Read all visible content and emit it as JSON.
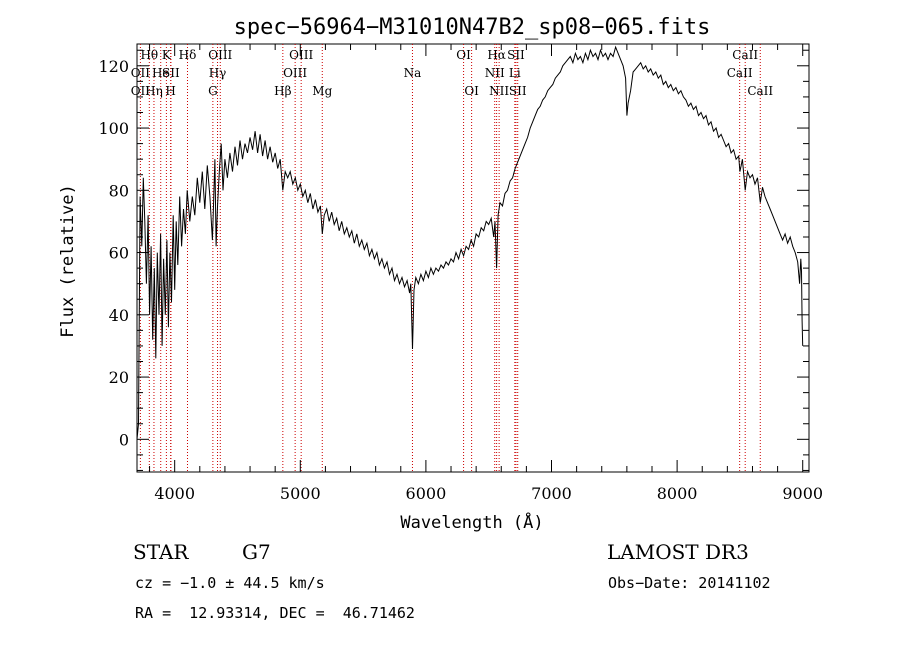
{
  "chart_data": {
    "type": "line",
    "title": "spec−56964−M31010N47B2_sp08−065.fits",
    "xlabel": "Wavelength (Å)",
    "ylabel": "Flux (relative)",
    "xlim": [
      3700,
      9050
    ],
    "ylim": [
      -10.5,
      127
    ],
    "xticks": [
      4000,
      5000,
      6000,
      7000,
      8000,
      9000
    ],
    "yticks": [
      0,
      20,
      40,
      60,
      80,
      100,
      120
    ],
    "grid": false,
    "line_color": "#000000",
    "marker_color": "#cc0000",
    "spectrum": [
      [
        3700,
        0
      ],
      [
        3712,
        5
      ],
      [
        3725,
        78
      ],
      [
        3738,
        62
      ],
      [
        3750,
        84
      ],
      [
        3762,
        70
      ],
      [
        3775,
        50
      ],
      [
        3788,
        72
      ],
      [
        3800,
        40
      ],
      [
        3812,
        62
      ],
      [
        3825,
        32
      ],
      [
        3838,
        55
      ],
      [
        3850,
        26
      ],
      [
        3862,
        60
      ],
      [
        3875,
        40
      ],
      [
        3888,
        66
      ],
      [
        3900,
        30
      ],
      [
        3912,
        58
      ],
      [
        3925,
        40
      ],
      [
        3938,
        64
      ],
      [
        3950,
        36
      ],
      [
        3962,
        60
      ],
      [
        3975,
        44
      ],
      [
        3988,
        72
      ],
      [
        4000,
        48
      ],
      [
        4012,
        70
      ],
      [
        4025,
        56
      ],
      [
        4040,
        78
      ],
      [
        4055,
        62
      ],
      [
        4070,
        74
      ],
      [
        4085,
        66
      ],
      [
        4100,
        80
      ],
      [
        4120,
        70
      ],
      [
        4140,
        78
      ],
      [
        4160,
        72
      ],
      [
        4180,
        84
      ],
      [
        4200,
        76
      ],
      [
        4220,
        86
      ],
      [
        4240,
        74
      ],
      [
        4260,
        88
      ],
      [
        4280,
        78
      ],
      [
        4300,
        64
      ],
      [
        4310,
        76
      ],
      [
        4320,
        90
      ],
      [
        4330,
        62
      ],
      [
        4340,
        74
      ],
      [
        4355,
        86
      ],
      [
        4370,
        95
      ],
      [
        4385,
        80
      ],
      [
        4400,
        90
      ],
      [
        4420,
        84
      ],
      [
        4440,
        92
      ],
      [
        4460,
        86
      ],
      [
        4480,
        94
      ],
      [
        4500,
        88
      ],
      [
        4520,
        96
      ],
      [
        4540,
        90
      ],
      [
        4560,
        95
      ],
      [
        4580,
        92
      ],
      [
        4600,
        97
      ],
      [
        4620,
        93
      ],
      [
        4640,
        99
      ],
      [
        4660,
        92
      ],
      [
        4680,
        98
      ],
      [
        4700,
        91
      ],
      [
        4720,
        96
      ],
      [
        4740,
        90
      ],
      [
        4760,
        94
      ],
      [
        4780,
        89
      ],
      [
        4800,
        92
      ],
      [
        4820,
        87
      ],
      [
        4840,
        90
      ],
      [
        4861,
        80
      ],
      [
        4880,
        86
      ],
      [
        4900,
        84
      ],
      [
        4920,
        86
      ],
      [
        4940,
        82
      ],
      [
        4960,
        84
      ],
      [
        4980,
        80
      ],
      [
        5000,
        82
      ],
      [
        5020,
        78
      ],
      [
        5040,
        80
      ],
      [
        5060,
        76
      ],
      [
        5080,
        79
      ],
      [
        5100,
        74
      ],
      [
        5120,
        77
      ],
      [
        5140,
        73
      ],
      [
        5160,
        75
      ],
      [
        5175,
        66
      ],
      [
        5190,
        72
      ],
      [
        5210,
        74
      ],
      [
        5230,
        70
      ],
      [
        5250,
        73
      ],
      [
        5270,
        69
      ],
      [
        5290,
        71
      ],
      [
        5310,
        67
      ],
      [
        5330,
        70
      ],
      [
        5350,
        66
      ],
      [
        5370,
        68
      ],
      [
        5390,
        65
      ],
      [
        5410,
        67
      ],
      [
        5430,
        63
      ],
      [
        5450,
        66
      ],
      [
        5470,
        62
      ],
      [
        5490,
        64
      ],
      [
        5510,
        61
      ],
      [
        5530,
        63
      ],
      [
        5550,
        59
      ],
      [
        5570,
        61
      ],
      [
        5590,
        58
      ],
      [
        5610,
        60
      ],
      [
        5630,
        56
      ],
      [
        5650,
        58
      ],
      [
        5670,
        55
      ],
      [
        5690,
        57
      ],
      [
        5710,
        53
      ],
      [
        5730,
        55
      ],
      [
        5750,
        51
      ],
      [
        5770,
        53
      ],
      [
        5790,
        50
      ],
      [
        5810,
        52
      ],
      [
        5830,
        49
      ],
      [
        5850,
        51
      ],
      [
        5870,
        47
      ],
      [
        5880,
        50
      ],
      [
        5893,
        29
      ],
      [
        5905,
        48
      ],
      [
        5920,
        52
      ],
      [
        5940,
        50
      ],
      [
        5960,
        53
      ],
      [
        5980,
        51
      ],
      [
        6000,
        54
      ],
      [
        6020,
        52
      ],
      [
        6040,
        55
      ],
      [
        6060,
        53
      ],
      [
        6080,
        55
      ],
      [
        6100,
        54
      ],
      [
        6120,
        56
      ],
      [
        6140,
        55
      ],
      [
        6160,
        57
      ],
      [
        6180,
        56
      ],
      [
        6200,
        58
      ],
      [
        6220,
        57
      ],
      [
        6240,
        60
      ],
      [
        6260,
        58
      ],
      [
        6280,
        61
      ],
      [
        6300,
        59
      ],
      [
        6320,
        62
      ],
      [
        6340,
        61
      ],
      [
        6360,
        64
      ],
      [
        6380,
        62
      ],
      [
        6400,
        66
      ],
      [
        6420,
        65
      ],
      [
        6440,
        68
      ],
      [
        6460,
        67
      ],
      [
        6480,
        70
      ],
      [
        6500,
        69
      ],
      [
        6520,
        71
      ],
      [
        6540,
        65
      ],
      [
        6550,
        70
      ],
      [
        6563,
        55
      ],
      [
        6575,
        72
      ],
      [
        6590,
        76
      ],
      [
        6610,
        75
      ],
      [
        6630,
        79
      ],
      [
        6650,
        80
      ],
      [
        6670,
        83
      ],
      [
        6690,
        84
      ],
      [
        6710,
        87
      ],
      [
        6730,
        89
      ],
      [
        6750,
        91
      ],
      [
        6770,
        93
      ],
      [
        6790,
        95
      ],
      [
        6810,
        97
      ],
      [
        6830,
        100
      ],
      [
        6850,
        102
      ],
      [
        6870,
        104
      ],
      [
        6890,
        106
      ],
      [
        6910,
        107
      ],
      [
        6930,
        109
      ],
      [
        6950,
        110
      ],
      [
        6970,
        112
      ],
      [
        6990,
        113
      ],
      [
        7010,
        114
      ],
      [
        7030,
        116
      ],
      [
        7050,
        117
      ],
      [
        7070,
        118
      ],
      [
        7090,
        120
      ],
      [
        7110,
        121
      ],
      [
        7130,
        122
      ],
      [
        7150,
        123
      ],
      [
        7170,
        121
      ],
      [
        7190,
        124
      ],
      [
        7210,
        122
      ],
      [
        7230,
        123
      ],
      [
        7250,
        121
      ],
      [
        7270,
        124
      ],
      [
        7290,
        122
      ],
      [
        7310,
        125
      ],
      [
        7330,
        123
      ],
      [
        7350,
        124
      ],
      [
        7370,
        122
      ],
      [
        7390,
        125
      ],
      [
        7410,
        123
      ],
      [
        7430,
        124
      ],
      [
        7450,
        122
      ],
      [
        7470,
        124
      ],
      [
        7490,
        123
      ],
      [
        7510,
        126
      ],
      [
        7530,
        124
      ],
      [
        7550,
        122
      ],
      [
        7570,
        120
      ],
      [
        7590,
        116
      ],
      [
        7600,
        104
      ],
      [
        7610,
        108
      ],
      [
        7630,
        112
      ],
      [
        7650,
        118
      ],
      [
        7670,
        119
      ],
      [
        7690,
        120
      ],
      [
        7710,
        121
      ],
      [
        7730,
        119
      ],
      [
        7750,
        120
      ],
      [
        7770,
        118
      ],
      [
        7790,
        119
      ],
      [
        7810,
        117
      ],
      [
        7830,
        118
      ],
      [
        7850,
        116
      ],
      [
        7870,
        117
      ],
      [
        7890,
        114
      ],
      [
        7910,
        115
      ],
      [
        7930,
        113
      ],
      [
        7950,
        114
      ],
      [
        7970,
        112
      ],
      [
        7990,
        113
      ],
      [
        8010,
        111
      ],
      [
        8030,
        112
      ],
      [
        8050,
        110
      ],
      [
        8070,
        109
      ],
      [
        8090,
        107
      ],
      [
        8110,
        108
      ],
      [
        8130,
        106
      ],
      [
        8150,
        107
      ],
      [
        8170,
        104
      ],
      [
        8190,
        105
      ],
      [
        8210,
        103
      ],
      [
        8230,
        104
      ],
      [
        8250,
        101
      ],
      [
        8270,
        102
      ],
      [
        8290,
        99
      ],
      [
        8310,
        100
      ],
      [
        8330,
        97
      ],
      [
        8350,
        98
      ],
      [
        8370,
        96
      ],
      [
        8390,
        94
      ],
      [
        8410,
        95
      ],
      [
        8430,
        92
      ],
      [
        8450,
        93
      ],
      [
        8470,
        90
      ],
      [
        8490,
        91
      ],
      [
        8500,
        86
      ],
      [
        8510,
        88
      ],
      [
        8520,
        90
      ],
      [
        8542,
        80
      ],
      [
        8560,
        86
      ],
      [
        8580,
        84
      ],
      [
        8600,
        85
      ],
      [
        8620,
        82
      ],
      [
        8640,
        84
      ],
      [
        8662,
        76
      ],
      [
        8680,
        81
      ],
      [
        8700,
        78
      ],
      [
        8720,
        76
      ],
      [
        8740,
        74
      ],
      [
        8760,
        72
      ],
      [
        8780,
        70
      ],
      [
        8800,
        68
      ],
      [
        8820,
        66
      ],
      [
        8840,
        64
      ],
      [
        8860,
        66
      ],
      [
        8880,
        63
      ],
      [
        8900,
        65
      ],
      [
        8920,
        62
      ],
      [
        8940,
        60
      ],
      [
        8960,
        57
      ],
      [
        8975,
        50
      ],
      [
        8985,
        58
      ],
      [
        8990,
        54
      ],
      [
        8995,
        38
      ],
      [
        9000,
        30
      ]
    ],
    "line_markers": [
      {
        "name": "OII",
        "wave": 3727
      },
      {
        "name": "Hθ",
        "wave": 3798
      },
      {
        "name": "Hη",
        "wave": 3835
      },
      {
        "name": "He",
        "wave": 3889
      },
      {
        "name": "K",
        "wave": 3934
      },
      {
        "name": "SII",
        "wave": 3970
      },
      {
        "name": "H",
        "wave": 3968
      },
      {
        "name": "Hδ",
        "wave": 4102
      },
      {
        "name": "G",
        "wave": 4304
      },
      {
        "name": "Hγ",
        "wave": 4341
      },
      {
        "name": "OIII",
        "wave": 4363
      },
      {
        "name": "Hβ",
        "wave": 4861
      },
      {
        "name": "OIII",
        "wave": 4959
      },
      {
        "name": "OIII",
        "wave": 5007
      },
      {
        "name": "Mg",
        "wave": 5175
      },
      {
        "name": "Na",
        "wave": 5893
      },
      {
        "name": "OI",
        "wave": 6300
      },
      {
        "name": "OI",
        "wave": 6364
      },
      {
        "name": "NII",
        "wave": 6548
      },
      {
        "name": "Hα",
        "wave": 6563
      },
      {
        "name": "NII",
        "wave": 6583
      },
      {
        "name": "Li",
        "wave": 6708
      },
      {
        "name": "SII",
        "wave": 6717
      },
      {
        "name": "SII",
        "wave": 6731
      },
      {
        "name": "CaII",
        "wave": 8498
      },
      {
        "name": "CaII",
        "wave": 8542
      },
      {
        "name": "CaII",
        "wave": 8662
      }
    ],
    "line_labels": [
      {
        "text": "Hθ",
        "wave": 3798,
        "row": 0
      },
      {
        "text": "K",
        "wave": 3934,
        "row": 0
      },
      {
        "text": "Hδ",
        "wave": 4102,
        "row": 0
      },
      {
        "text": "OIII",
        "wave": 4363,
        "row": 0
      },
      {
        "text": "OIII",
        "wave": 5007,
        "row": 0
      },
      {
        "text": "OI",
        "wave": 6300,
        "row": 0
      },
      {
        "text": "Hα",
        "wave": 6563,
        "row": 0
      },
      {
        "text": "SII",
        "wave": 6717,
        "row": 0
      },
      {
        "text": "CaII",
        "wave": 8542,
        "row": 0
      },
      {
        "text": "OII",
        "wave": 3727,
        "row": 1
      },
      {
        "text": "He",
        "wave": 3889,
        "row": 1
      },
      {
        "text": "SII",
        "wave": 3970,
        "row": 1
      },
      {
        "text": "Hγ",
        "wave": 4341,
        "row": 1
      },
      {
        "text": "OIII",
        "wave": 4959,
        "row": 1
      },
      {
        "text": "Na",
        "wave": 5893,
        "row": 1
      },
      {
        "text": "NII",
        "wave": 6548,
        "row": 1
      },
      {
        "text": "Li",
        "wave": 6708,
        "row": 1
      },
      {
        "text": "CaII",
        "wave": 8498,
        "row": 1
      },
      {
        "text": "OII",
        "wave": 3727,
        "row": 2
      },
      {
        "text": "Hη",
        "wave": 3835,
        "row": 2
      },
      {
        "text": "H",
        "wave": 3968,
        "row": 2
      },
      {
        "text": "G",
        "wave": 4304,
        "row": 2
      },
      {
        "text": "Hβ",
        "wave": 4861,
        "row": 2
      },
      {
        "text": "Mg",
        "wave": 5175,
        "row": 2
      },
      {
        "text": "OI",
        "wave": 6364,
        "row": 2
      },
      {
        "text": "NII",
        "wave": 6583,
        "row": 2
      },
      {
        "text": "SII",
        "wave": 6731,
        "row": 2
      },
      {
        "text": "CaII",
        "wave": 8662,
        "row": 2
      }
    ]
  },
  "info": {
    "object_class": "STAR",
    "subclass": "G7",
    "survey": "LAMOST DR3",
    "redshift": "cz = −1.0 ± 44.5 km/s",
    "obs_date": "Obs−Date: 20141102",
    "coords": "RA =  12.93314, DEC =  46.71462"
  }
}
